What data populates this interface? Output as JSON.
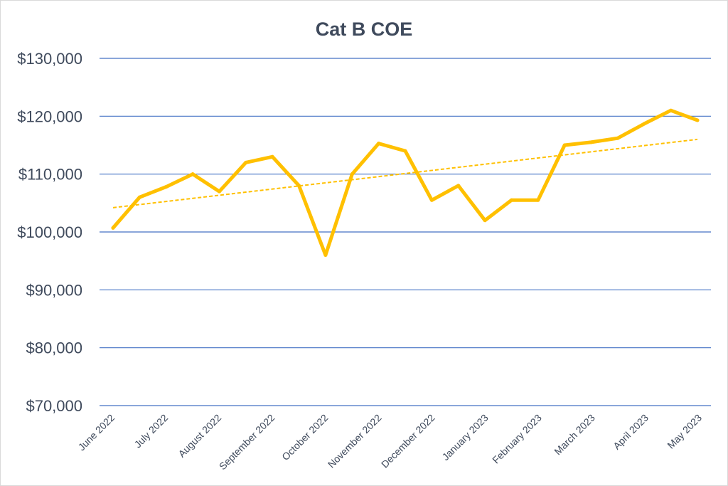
{
  "chart_data": {
    "type": "line",
    "title": "Cat B COE",
    "xlabel": "",
    "ylabel": "",
    "ylim": [
      70000,
      130000
    ],
    "yticks": [
      130000,
      120000,
      110000,
      100000,
      90000,
      80000,
      70000
    ],
    "ytick_labels": [
      "$130,000",
      "$120,000",
      "$110,000",
      "$100,000",
      "$90,000",
      "$80,000",
      "$70,000"
    ],
    "x_tick_labels": [
      "June 2022",
      "July 2022",
      "August 2022",
      "September 2022",
      "October 2022",
      "November 2022",
      "December 2022",
      "January 2023",
      "February 2023",
      "March 2023",
      "April 2023",
      "May 2023"
    ],
    "grid": true,
    "line_color": "#ffc000",
    "grid_color": "#4472c4",
    "series": [
      {
        "values": [
          100700,
          106000,
          107800,
          110000,
          107000,
          112000,
          113000,
          108000,
          96000,
          110000,
          115300,
          114000,
          105500,
          108000,
          102000,
          105500,
          105500,
          115000,
          115500,
          116200,
          118700,
          121000,
          119300
        ]
      }
    ],
    "trendline": {
      "type": "linear",
      "style": "dashed",
      "start_value": 104200,
      "end_value": 116000
    }
  }
}
